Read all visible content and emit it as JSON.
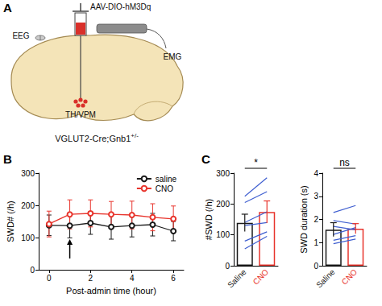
{
  "panel_labels": [
    "A",
    "B",
    "C"
  ],
  "diagram": {
    "injection": "AAV-DIO-hM3Dq",
    "eeg": "EEG",
    "emg": "EMG",
    "target": "TH/VPM",
    "mouse": {
      "text": "VGLUT2-Cre;Gnb1",
      "superscript": "+/-"
    }
  },
  "chart_data": [
    {
      "type": "line",
      "xlabel": "Post-admin time (hour)",
      "ylabel": "SWD# (/h)",
      "x": [
        0,
        1,
        2,
        3,
        4,
        5,
        6
      ],
      "series": [
        {
          "name": "saline",
          "color": "#1a1a1a",
          "marker": "open circle",
          "values": [
            138,
            137,
            145,
            133,
            137,
            140,
            120
          ],
          "errors": [
            32,
            38,
            35,
            38,
            35,
            35,
            30
          ]
        },
        {
          "name": "CNO",
          "color": "#e8342c",
          "marker": "open circle",
          "values": [
            142,
            172,
            175,
            172,
            170,
            163,
            158
          ],
          "errors": [
            40,
            45,
            42,
            40,
            43,
            42,
            40
          ]
        }
      ],
      "xlim": [
        -0.5,
        6.5
      ],
      "xticks": [
        0,
        2,
        4,
        6
      ],
      "ylim": [
        0,
        300
      ],
      "yticks": [
        0,
        100,
        200,
        300
      ],
      "legend": "upper right",
      "annotations": [
        {
          "x": 1,
          "y": 95,
          "marker": "arrow"
        }
      ]
    },
    {
      "type": "bar",
      "ylabel": "#SWD (/h)",
      "categories": [
        "Saline",
        "CNO"
      ],
      "values": [
        139,
        174
      ],
      "errors": [
        28,
        36
      ],
      "colors": [
        "#1a1a1a",
        "#e8342c"
      ],
      "ylim": [
        0,
        300
      ],
      "yticks": [
        0,
        100,
        200,
        300
      ],
      "annotations": [
        {
          "text": "*"
        }
      ],
      "series": [
        {
          "type": "line",
          "color": "#3f5fd0",
          "values": [
            225,
            285
          ]
        },
        {
          "type": "line",
          "color": "#3f5fd0",
          "values": [
            205,
            240
          ]
        },
        {
          "type": "line",
          "color": "#3f5fd0",
          "values": [
            140,
            175
          ]
        },
        {
          "type": "line",
          "color": "#3f5fd0",
          "values": [
            130,
            140
          ]
        },
        {
          "type": "line",
          "color": "#3f5fd0",
          "values": [
            80,
            110
          ]
        },
        {
          "type": "line",
          "color": "#3f5fd0",
          "values": [
            55,
            95
          ]
        }
      ]
    },
    {
      "type": "bar",
      "ylabel": "SWD duration (s)",
      "categories": [
        "Saline",
        "CNO"
      ],
      "values": [
        1.56,
        1.6
      ],
      "errors": [
        0.3,
        0.22
      ],
      "colors": [
        "#1a1a1a",
        "#e8342c"
      ],
      "ylim": [
        0,
        4
      ],
      "yticks": [
        0,
        1,
        2,
        3,
        4
      ],
      "annotations": [
        {
          "text": "ns"
        }
      ],
      "series": [
        {
          "type": "line",
          "color": "#3f5fd0",
          "values": [
            2.3,
            2.6
          ]
        },
        {
          "type": "line",
          "color": "#3f5fd0",
          "values": [
            1.95,
            1.8
          ]
        },
        {
          "type": "line",
          "color": "#3f5fd0",
          "values": [
            1.7,
            1.55
          ]
        },
        {
          "type": "line",
          "color": "#3f5fd0",
          "values": [
            1.35,
            1.65
          ]
        },
        {
          "type": "line",
          "color": "#3f5fd0",
          "values": [
            1.1,
            1.3
          ]
        },
        {
          "type": "line",
          "color": "#3f5fd0",
          "values": [
            0.95,
            1.15
          ]
        }
      ]
    }
  ]
}
